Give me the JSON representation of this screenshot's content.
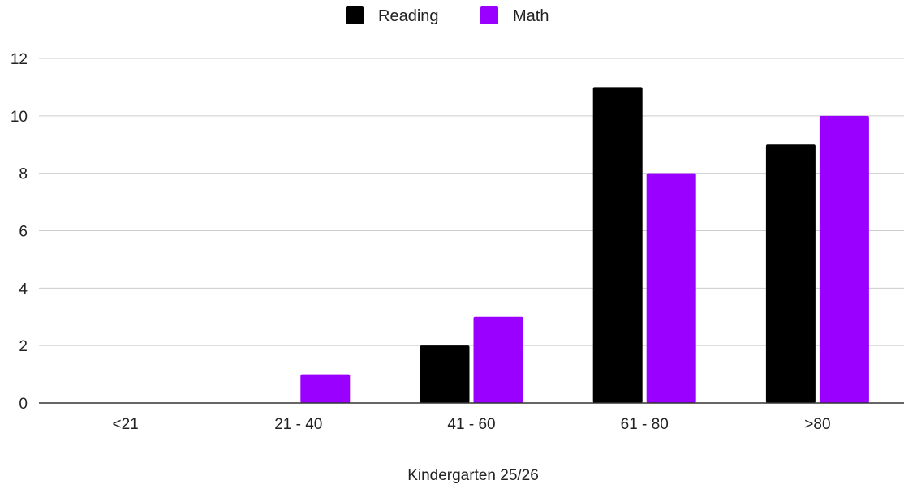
{
  "chart_data": {
    "type": "bar",
    "title": "",
    "xlabel": "Kindergarten 25/26",
    "ylabel": "",
    "categories": [
      "<21",
      "21 - 40",
      "41 - 60",
      "61 - 80",
      ">80"
    ],
    "series": [
      {
        "name": "Reading",
        "color": "#000000",
        "values": [
          0,
          0,
          2,
          11,
          9
        ]
      },
      {
        "name": "Math",
        "color": "#9900ff",
        "values": [
          0,
          1,
          3,
          8,
          10
        ]
      }
    ],
    "ylim": [
      0,
      12
    ],
    "yticks": [
      0,
      2,
      4,
      6,
      8,
      10,
      12
    ],
    "grid": true,
    "legend_position": "top"
  }
}
